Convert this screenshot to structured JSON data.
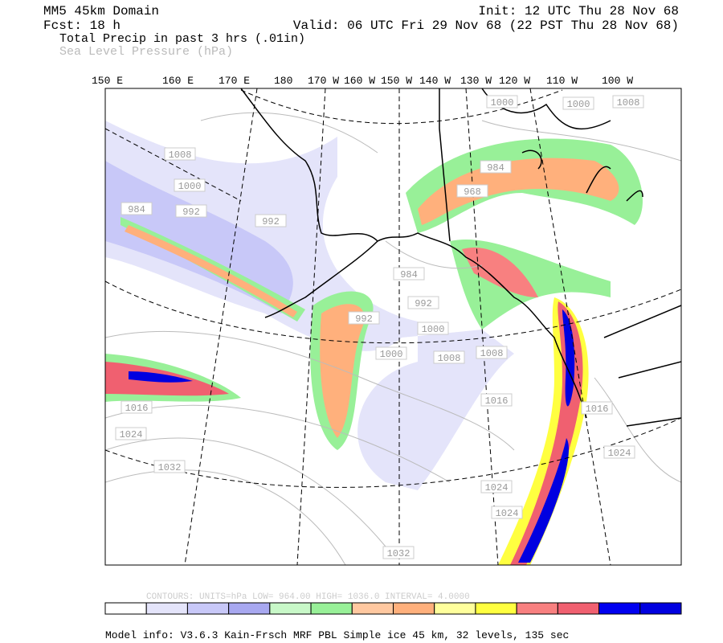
{
  "header": {
    "domain": "MM5 45km Domain",
    "forecast": "Fcst:   18 h",
    "field1": "Total Precip in past 3 hrs (.01in)",
    "field2": "Sea Level Pressure (hPa)",
    "init": "Init: 12 UTC Thu 28 Nov 68",
    "valid": "Valid: 06 UTC Fri 29 Nov 68 (22 PST Thu 28 Nov 68)"
  },
  "map": {
    "longitude_labels": [
      "150 E",
      "160 E",
      "170 E",
      "180",
      "170 W",
      "160 W",
      "150 W",
      "140 W",
      "130 W",
      "120 W",
      "110 W",
      "100 W"
    ],
    "contour_labels": [
      "1008",
      "1000",
      "1000",
      "1008",
      "1000",
      "984",
      "992",
      "992",
      "984",
      "968",
      "984",
      "992",
      "992",
      "1000",
      "1000",
      "1008",
      "1008",
      "1016",
      "1016",
      "1016",
      "1024",
      "1032",
      "1024",
      "1024",
      "1024",
      "1032"
    ]
  },
  "legend": {
    "contours": "CONTOURS:  UNITS=hPa  LOW=   964.00    HIGH=  1036.0    INTERVAL=    4.0000",
    "colors": [
      "#ffffff",
      "#e4e4fa",
      "#c8c8f8",
      "#a8a8f0",
      "#c8f8c8",
      "#98f098",
      "#ffc8a0",
      "#ffb07c",
      "#ffff9c",
      "#ffff40",
      "#f88080",
      "#f06070",
      "#0000f0",
      "#0000e0"
    ]
  },
  "footer": {
    "model_info": "Model info: V3.6.3 Kain-Frsch MRF PBL    Simple ice   45 km,  32 levels,  135 sec"
  }
}
